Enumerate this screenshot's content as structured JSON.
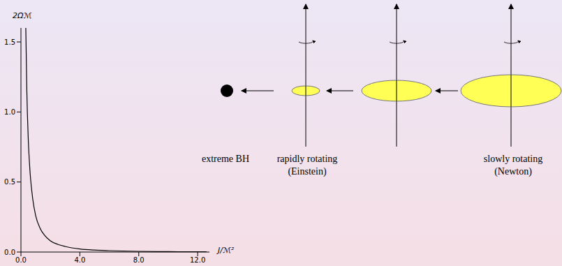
{
  "chart_data": {
    "type": "line",
    "x_label": "J/ℳ²",
    "y_label": "2Ωℳ",
    "x": [
      0.33,
      0.4,
      0.5,
      0.6,
      0.8,
      1.0,
      1.3,
      1.6,
      2.0,
      2.5,
      3.0,
      4.0,
      5.0,
      6.0,
      8.0,
      10.0,
      12.0,
      12.6
    ],
    "values": [
      1.6,
      1.15,
      0.8,
      0.6,
      0.38,
      0.26,
      0.17,
      0.12,
      0.08,
      0.055,
      0.04,
      0.022,
      0.014,
      0.01,
      0.005,
      0.003,
      0.002,
      0.002
    ],
    "color": "#000000",
    "xlim": [
      0,
      12.8
    ],
    "xticks": [
      {
        "value": 0,
        "label": "0.0"
      },
      {
        "value": 4,
        "label": "4.0"
      },
      {
        "value": 8,
        "label": "8.0"
      },
      {
        "value": 12,
        "label": "12.0"
      }
    ],
    "ylim": [
      0,
      1.6
    ],
    "yticks": [
      {
        "value": 0,
        "label": "0.0"
      },
      {
        "value": 0.5,
        "label": "0.5"
      },
      {
        "value": 1,
        "label": "1.0"
      },
      {
        "value": 1.5,
        "label": "1.5"
      }
    ],
    "grid": false
  },
  "diagram": {
    "labels": [
      {
        "lines": [
          "extreme BH"
        ]
      },
      {
        "lines": [
          "rapidly rotating",
          "(Einstein)"
        ]
      },
      {
        "lines": [
          "slowly rotating",
          "(Newton)"
        ]
      }
    ]
  }
}
